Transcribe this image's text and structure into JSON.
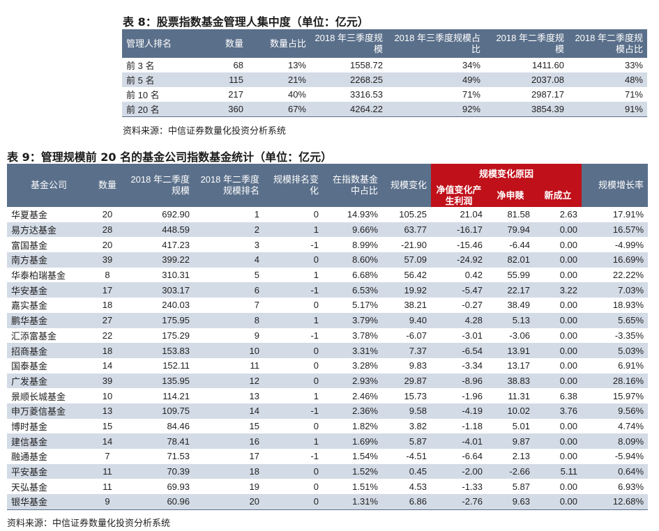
{
  "table8": {
    "caption": "表 8：股票指数基金管理人集中度（单位：亿元）",
    "headers": [
      "管理人排名",
      "数量",
      "数量占比",
      "2018 年三季度规模",
      "2018 年三季度规模占比",
      "2018 年二季度规模",
      "2018 年二季度规模占比"
    ],
    "rows": [
      [
        "前 3 名",
        "68",
        "13%",
        "1558.72",
        "34%",
        "1411.60",
        "33%"
      ],
      [
        "前 5 名",
        "115",
        "21%",
        "2268.25",
        "49%",
        "2037.08",
        "48%"
      ],
      [
        "前 10 名",
        "217",
        "40%",
        "3316.53",
        "71%",
        "2987.17",
        "71%"
      ],
      [
        "前 20 名",
        "360",
        "67%",
        "4264.22",
        "92%",
        "3854.39",
        "91%"
      ]
    ],
    "source": "资料来源：中信证券数量化投资分析系统"
  },
  "table9": {
    "caption": "表 9：管理规模前 20 名的基金公司指数基金统计（单位：亿元）",
    "headers": {
      "company": "基金公司",
      "count": "数量",
      "scale_q2": "2018 年二季度规模",
      "rank_q2": "2018 年二季度规模排名",
      "rank_change": "规模排名变化",
      "share": "在指数基金中占比",
      "scale_change": "规模变化",
      "reason_group": "规模变化原因",
      "nav_profit": "净值变化产生利润",
      "net_sub": "净申赎",
      "new_fund": "新成立",
      "growth": "规模增长率"
    },
    "rows": [
      [
        "华夏基金",
        "20",
        "692.90",
        "1",
        "0",
        "14.93%",
        "105.25",
        "21.04",
        "81.58",
        "2.63",
        "17.91%"
      ],
      [
        "易方达基金",
        "28",
        "448.59",
        "2",
        "1",
        "9.66%",
        "63.77",
        "-16.17",
        "79.94",
        "0.00",
        "16.57%"
      ],
      [
        "富国基金",
        "20",
        "417.23",
        "3",
        "-1",
        "8.99%",
        "-21.90",
        "-15.46",
        "-6.44",
        "0.00",
        "-4.99%"
      ],
      [
        "南方基金",
        "39",
        "399.22",
        "4",
        "0",
        "8.60%",
        "57.09",
        "-24.92",
        "82.01",
        "0.00",
        "16.69%"
      ],
      [
        "华泰柏瑞基金",
        "8",
        "310.31",
        "5",
        "1",
        "6.68%",
        "56.42",
        "0.42",
        "55.99",
        "0.00",
        "22.22%"
      ],
      [
        "华安基金",
        "17",
        "303.17",
        "6",
        "-1",
        "6.53%",
        "19.92",
        "-5.47",
        "22.17",
        "3.22",
        "7.03%"
      ],
      [
        "嘉实基金",
        "18",
        "240.03",
        "7",
        "0",
        "5.17%",
        "38.21",
        "-0.27",
        "38.49",
        "0.00",
        "18.93%"
      ],
      [
        "鹏华基金",
        "27",
        "175.95",
        "8",
        "1",
        "3.79%",
        "9.40",
        "4.28",
        "5.13",
        "0.00",
        "5.65%"
      ],
      [
        "汇添富基金",
        "22",
        "175.29",
        "9",
        "-1",
        "3.78%",
        "-6.07",
        "-3.01",
        "-3.06",
        "0.00",
        "-3.35%"
      ],
      [
        "招商基金",
        "18",
        "153.83",
        "10",
        "0",
        "3.31%",
        "7.37",
        "-6.54",
        "13.91",
        "0.00",
        "5.03%"
      ],
      [
        "国泰基金",
        "14",
        "152.11",
        "11",
        "0",
        "3.28%",
        "9.83",
        "-3.34",
        "13.17",
        "0.00",
        "6.91%"
      ],
      [
        "广发基金",
        "39",
        "135.95",
        "12",
        "0",
        "2.93%",
        "29.87",
        "-8.96",
        "38.83",
        "0.00",
        "28.16%"
      ],
      [
        "景顺长城基金",
        "10",
        "114.21",
        "13",
        "1",
        "2.46%",
        "15.73",
        "-1.96",
        "11.31",
        "6.38",
        "15.97%"
      ],
      [
        "申万菱信基金",
        "13",
        "109.75",
        "14",
        "-1",
        "2.36%",
        "9.58",
        "-4.19",
        "10.02",
        "3.76",
        "9.56%"
      ],
      [
        "博时基金",
        "15",
        "84.46",
        "15",
        "0",
        "1.82%",
        "3.82",
        "-1.18",
        "5.01",
        "0.00",
        "4.74%"
      ],
      [
        "建信基金",
        "14",
        "78.41",
        "16",
        "1",
        "1.69%",
        "5.87",
        "-4.01",
        "9.87",
        "0.00",
        "8.09%"
      ],
      [
        "融通基金",
        "7",
        "71.53",
        "17",
        "-1",
        "1.54%",
        "-4.51",
        "-6.64",
        "2.13",
        "0.00",
        "-5.94%"
      ],
      [
        "平安基金",
        "11",
        "70.39",
        "18",
        "0",
        "1.52%",
        "0.45",
        "-2.00",
        "-2.66",
        "5.11",
        "0.64%"
      ],
      [
        "天弘基金",
        "11",
        "69.93",
        "19",
        "0",
        "1.51%",
        "4.53",
        "-1.33",
        "5.87",
        "0.00",
        "6.93%"
      ],
      [
        "银华基金",
        "9",
        "60.96",
        "20",
        "0",
        "1.31%",
        "6.86",
        "-2.76",
        "9.63",
        "0.00",
        "12.68%"
      ]
    ],
    "source": "资料来源：中信证券数量化投资分析系统"
  }
}
